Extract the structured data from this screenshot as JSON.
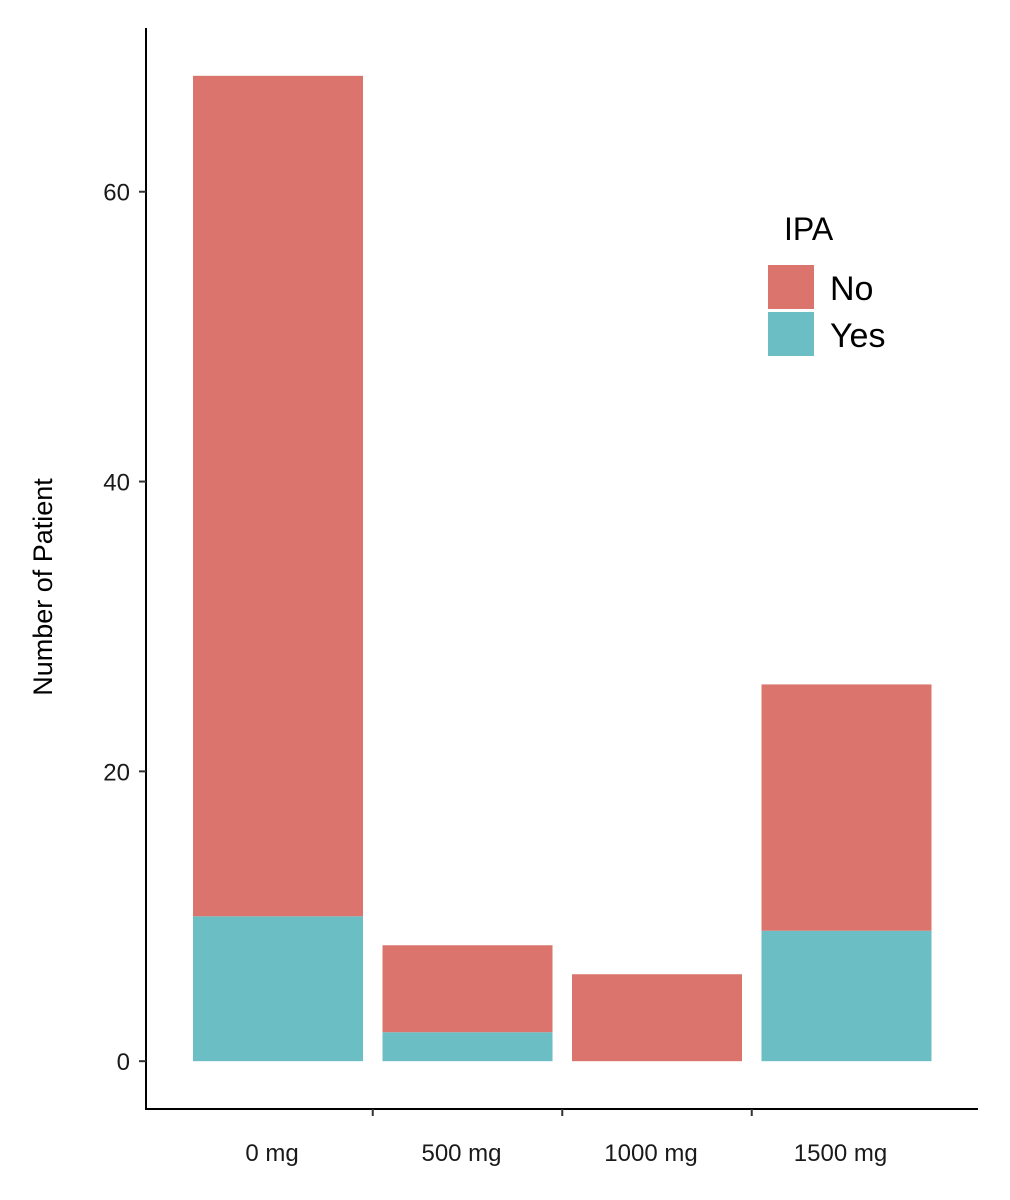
{
  "chart_data": {
    "type": "bar",
    "stacked": true,
    "categories": [
      "0 mg",
      "500 mg",
      "1000 mg",
      "1500 mg"
    ],
    "series": [
      {
        "name": "Yes",
        "values": [
          10,
          2,
          0,
          9
        ],
        "color": "#6BBEC4"
      },
      {
        "name": "No",
        "values": [
          58,
          6,
          6,
          17
        ],
        "color": "#DB746C"
      }
    ],
    "xlabel": "",
    "ylabel": "Number of Patient",
    "yticks": [
      0,
      20,
      40,
      60
    ],
    "ylim": [
      -3.3,
      71.3
    ],
    "grid": false,
    "legend": {
      "title": "IPA",
      "entries": [
        "No",
        "Yes"
      ],
      "placement": "top-right"
    }
  }
}
